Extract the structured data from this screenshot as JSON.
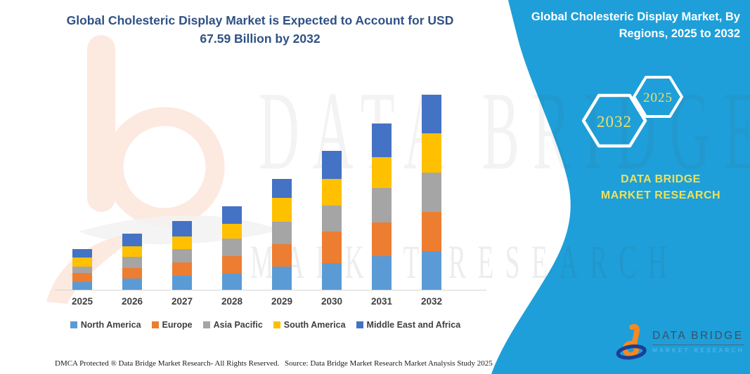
{
  "title": {
    "text": "Global Cholesteric Display Market is Expected to Account for USD 67.59 Billion by 2032"
  },
  "banner": {
    "title": "Global Cholesteric Display Market, By Regions, 2025 to 2032",
    "hexagons": [
      {
        "label": "2032"
      },
      {
        "label": "2025"
      }
    ],
    "caption": "DATA BRIDGE MARKET RESEARCH",
    "teal": "#1E9FD9",
    "yellow": "#EDE15B"
  },
  "watermark": {
    "primary": "DATA BRIDGE",
    "secondary": "MARKET RESEARCH"
  },
  "chart_data": {
    "type": "bar",
    "stacked": true,
    "title": "Global Cholesteric Display Market is Expected to Account for USD 67.59 Billion by 2032",
    "unit": "USD Billion",
    "categories": [
      "2025",
      "2026",
      "2027",
      "2028",
      "2029",
      "2030",
      "2031",
      "2032"
    ],
    "series": [
      {
        "name": "North America",
        "color": "#5B9BD5",
        "values": [
          2.8,
          3.9,
          4.9,
          5.6,
          8.0,
          9.3,
          11.8,
          13.4
        ]
      },
      {
        "name": "Europe",
        "color": "#ED7D31",
        "values": [
          3.2,
          3.7,
          4.7,
          6.2,
          7.9,
          11.0,
          11.8,
          13.6
        ]
      },
      {
        "name": "Asia Pacific",
        "color": "#A5A5A5",
        "values": [
          2.2,
          3.9,
          4.6,
          6.1,
          7.7,
          9.1,
          12.0,
          13.7
        ]
      },
      {
        "name": "South America",
        "color": "#FFC000",
        "values": [
          3.2,
          3.7,
          4.4,
          5.2,
          8.4,
          9.2,
          10.8,
          13.6
        ]
      },
      {
        "name": "Middle East and Africa",
        "color": "#4472C4",
        "values": [
          2.9,
          4.4,
          5.4,
          6.2,
          6.6,
          9.7,
          11.7,
          13.3
        ]
      }
    ],
    "totals_estimated": [
      14.3,
      19.6,
      24.0,
      29.3,
      38.6,
      48.3,
      58.1,
      67.59
    ],
    "highlight_value_2032": "USD 67.59 Billion",
    "ylim": [
      0,
      70
    ],
    "grid": false,
    "legend_position": "bottom"
  },
  "footer": {
    "dmca": "DMCA Protected ® Data Bridge Market Research-  All Rights Reserved.",
    "source": "Source: Data Bridge Market Research  Market Analysis Study 2025"
  },
  "logo": {
    "brand": "DATA BRIDGE",
    "tagline": "MARKET RESEARCH"
  }
}
